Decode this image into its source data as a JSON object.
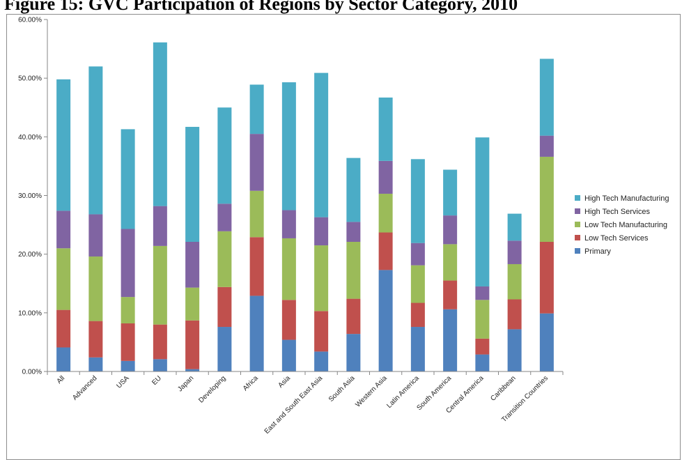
{
  "chart_data": {
    "type": "bar",
    "stacked": true,
    "title": "Figure 15: GVC Participation of Regions by Sector Category, 2010",
    "categories": [
      "All",
      "Advanced",
      "USA",
      "EU",
      "Japan",
      "Developing",
      "Africa",
      "Asia",
      "East and South East Asia",
      "South Asia",
      "Western Asia",
      "Latin America",
      "South America",
      "Central America",
      "Caribbean",
      "Transition Countries"
    ],
    "series": [
      {
        "name": "Primary",
        "color": "#4f81bd",
        "values": [
          4.1,
          2.4,
          1.8,
          2.1,
          0.4,
          7.6,
          12.9,
          5.4,
          3.4,
          6.4,
          17.3,
          7.6,
          10.6,
          2.9,
          7.2,
          9.9
        ]
      },
      {
        "name": "Low Tech Services",
        "color": "#c0504d",
        "values": [
          6.4,
          6.2,
          6.4,
          5.9,
          8.3,
          6.8,
          10.0,
          6.8,
          6.9,
          6.0,
          6.4,
          4.1,
          4.9,
          2.7,
          5.1,
          12.2
        ]
      },
      {
        "name": "Low Tech Manufacturing",
        "color": "#9bbb59",
        "values": [
          10.5,
          11.0,
          4.5,
          13.4,
          5.6,
          9.5,
          7.9,
          10.5,
          11.2,
          9.7,
          6.6,
          6.4,
          6.2,
          6.6,
          6.0,
          14.5
        ]
      },
      {
        "name": "High Tech Services",
        "color": "#8064a2",
        "values": [
          6.4,
          7.2,
          11.6,
          6.8,
          7.8,
          4.7,
          9.7,
          4.8,
          4.8,
          3.4,
          5.6,
          3.8,
          4.9,
          2.3,
          4.0,
          3.6
        ]
      },
      {
        "name": "High Tech Manufacturing",
        "color": "#4bacc6",
        "values": [
          22.4,
          25.2,
          17.0,
          27.9,
          19.6,
          16.4,
          8.4,
          21.8,
          24.6,
          10.9,
          10.8,
          14.3,
          7.8,
          25.4,
          4.6,
          13.1
        ]
      }
    ],
    "ylim": [
      0,
      60
    ],
    "yticks": [
      "0.00%",
      "10.00%",
      "20.00%",
      "30.00%",
      "40.00%",
      "50.00%",
      "60.00%"
    ],
    "legend_position": "right",
    "grid": false
  }
}
